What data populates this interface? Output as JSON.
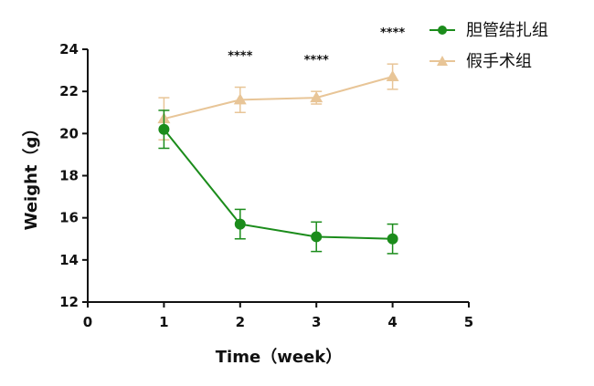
{
  "chart_data": {
    "type": "line",
    "xlabel": "Time（week）",
    "ylabel": "Weight（g）",
    "xlim": [
      0,
      5
    ],
    "ylim": [
      12,
      24
    ],
    "xticks": [
      "0",
      "1",
      "2",
      "3",
      "4",
      "5"
    ],
    "yticks": [
      "12",
      "14",
      "16",
      "18",
      "20",
      "22",
      "24"
    ],
    "grid": false,
    "legend_position": "top-right",
    "series": [
      {
        "name": "胆管结扎组",
        "color": "#1b8c1b",
        "marker": "circle",
        "x": [
          1,
          2,
          3,
          4
        ],
        "y": [
          20.2,
          15.7,
          15.1,
          15.0
        ],
        "error": [
          0.9,
          0.7,
          0.7,
          0.7
        ]
      },
      {
        "name": "假手术组",
        "color": "#e8c597",
        "marker": "triangle",
        "x": [
          1,
          2,
          3,
          4
        ],
        "y": [
          20.7,
          21.6,
          21.7,
          22.7
        ],
        "error": [
          1.0,
          0.6,
          0.3,
          0.6
        ]
      }
    ],
    "annotations": [
      {
        "x": 2,
        "text": "****"
      },
      {
        "x": 3,
        "text": "****"
      },
      {
        "x": 4,
        "text": "****"
      }
    ]
  }
}
